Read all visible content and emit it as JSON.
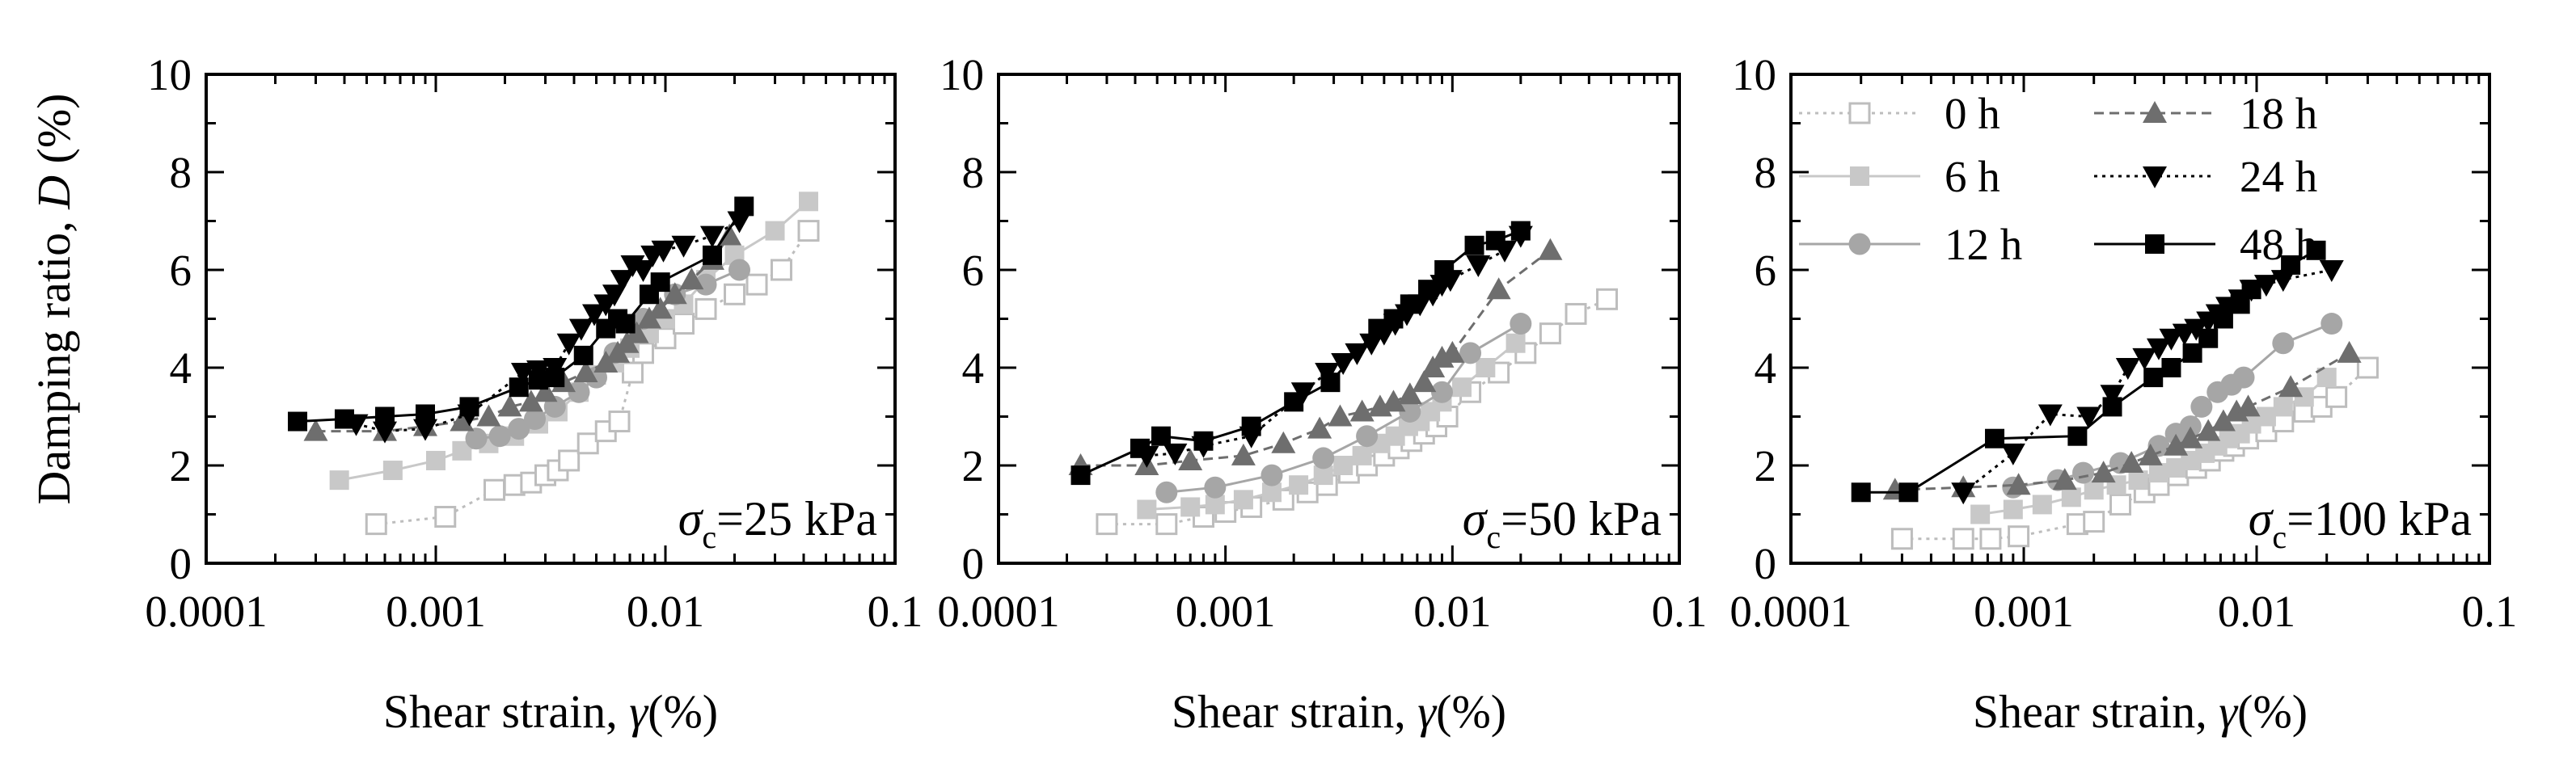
{
  "figure": {
    "y_axis_label_prefix": "Damping ratio, ",
    "y_axis_label_symbol": "D",
    "y_axis_label_suffix": " (%)",
    "x_axis_label_prefix": "Shear strain, ",
    "x_axis_label_symbol": "γ",
    "x_axis_label_suffix": "(%)"
  },
  "legend": [
    {
      "label": "0 h",
      "color": "#bdbdbd",
      "marker": "open-square",
      "line": "dotted"
    },
    {
      "label": "6 h",
      "color": "#c8c8c8",
      "marker": "filled-square",
      "line": "solid"
    },
    {
      "label": "12 h",
      "color": "#a6a6a6",
      "marker": "circle",
      "line": "solid"
    },
    {
      "label": "18 h",
      "color": "#6e6e6e",
      "marker": "triangle-up",
      "line": "dashed"
    },
    {
      "label": "24 h",
      "color": "#000000",
      "marker": "triangle-down",
      "line": "dotted"
    },
    {
      "label": "48 h",
      "color": "#000000",
      "marker": "filled-square",
      "line": "solid"
    }
  ],
  "chart_data": [
    {
      "type": "line",
      "x_scale": "log",
      "xlim": [
        0.0001,
        0.1
      ],
      "ylim": [
        0,
        10
      ],
      "x_tick_labels": [
        "0.0001",
        "0.001",
        "0.01",
        "0.1"
      ],
      "y_tick_labels": [
        "0",
        "2",
        "4",
        "6",
        "8",
        "10"
      ],
      "annotation": {
        "symbol": "σ",
        "subscript": "c",
        "text": "=25 kPa"
      },
      "series": [
        {
          "name": "0 h",
          "x": [
            0.00055,
            0.0011,
            0.0018,
            0.0022,
            0.0026,
            0.003,
            0.0034,
            0.0038,
            0.0046,
            0.0055,
            0.0063,
            0.0072,
            0.008,
            0.01,
            0.012,
            0.015,
            0.02,
            0.025,
            0.032,
            0.042
          ],
          "y": [
            0.8,
            0.95,
            1.5,
            1.6,
            1.65,
            1.8,
            1.9,
            2.1,
            2.45,
            2.7,
            2.9,
            3.9,
            4.3,
            4.6,
            4.9,
            5.2,
            5.5,
            5.7,
            6.0,
            6.8
          ]
        },
        {
          "name": "6 h",
          "x": [
            0.00038,
            0.00065,
            0.001,
            0.0013,
            0.0017,
            0.0022,
            0.0028,
            0.0034,
            0.0042,
            0.005,
            0.006,
            0.007,
            0.0085,
            0.01,
            0.012,
            0.015,
            0.02,
            0.03,
            0.042
          ],
          "y": [
            1.7,
            1.9,
            2.1,
            2.3,
            2.45,
            2.6,
            2.85,
            3.1,
            3.5,
            3.85,
            4.1,
            4.4,
            4.7,
            5.0,
            5.3,
            5.8,
            6.3,
            6.8,
            7.4
          ]
        },
        {
          "name": "12 h",
          "x": [
            0.0015,
            0.0019,
            0.0023,
            0.0027,
            0.0033,
            0.0042,
            0.005,
            0.006,
            0.008,
            0.011,
            0.015,
            0.021
          ],
          "y": [
            2.55,
            2.6,
            2.75,
            2.95,
            3.2,
            3.5,
            3.8,
            4.3,
            5.0,
            5.5,
            5.7,
            6.0
          ]
        },
        {
          "name": "18 h",
          "x": [
            0.0003,
            0.0006,
            0.0009,
            0.0013,
            0.0017,
            0.0021,
            0.0026,
            0.003,
            0.0036,
            0.0045,
            0.0055,
            0.0062,
            0.0068,
            0.0075,
            0.0085,
            0.0095,
            0.011,
            0.013,
            0.016,
            0.019
          ],
          "y": [
            2.7,
            2.7,
            2.8,
            2.9,
            3.0,
            3.2,
            3.3,
            3.5,
            3.7,
            3.9,
            4.1,
            4.3,
            4.5,
            4.7,
            5.0,
            5.2,
            5.5,
            5.8,
            6.2,
            6.7
          ]
        },
        {
          "name": "24 h",
          "x": [
            0.00045,
            0.0006,
            0.0009,
            0.0014,
            0.0024,
            0.0028,
            0.0033,
            0.0038,
            0.0043,
            0.0049,
            0.0055,
            0.006,
            0.0065,
            0.0072,
            0.008,
            0.0088,
            0.0098,
            0.012,
            0.016,
            0.021
          ],
          "y": [
            2.85,
            2.7,
            2.75,
            3.05,
            3.9,
            3.95,
            4.0,
            4.5,
            4.8,
            5.1,
            5.3,
            5.5,
            5.8,
            6.1,
            6.0,
            6.3,
            6.4,
            6.5,
            6.7,
            7.0
          ]
        },
        {
          "name": "48 h",
          "x": [
            0.00025,
            0.0004,
            0.0006,
            0.0009,
            0.0014,
            0.0023,
            0.0028,
            0.0033,
            0.0044,
            0.0055,
            0.0062,
            0.0067,
            0.0085,
            0.0095,
            0.016,
            0.022
          ],
          "y": [
            2.9,
            2.95,
            3.0,
            3.05,
            3.2,
            3.6,
            3.75,
            3.8,
            4.25,
            4.8,
            5.0,
            4.9,
            5.5,
            5.75,
            6.3,
            7.3
          ]
        }
      ]
    },
    {
      "type": "line",
      "x_scale": "log",
      "xlim": [
        0.0001,
        0.1
      ],
      "ylim": [
        0,
        10
      ],
      "x_tick_labels": [
        "0.0001",
        "0.001",
        "0.01",
        "0.1"
      ],
      "y_tick_labels": [
        "0",
        "2",
        "4",
        "6",
        "8",
        "10"
      ],
      "annotation": {
        "symbol": "σ",
        "subscript": "c",
        "text": "=50 kPa"
      },
      "series": [
        {
          "name": "0 h",
          "x": [
            0.0003,
            0.00055,
            0.0008,
            0.001,
            0.0013,
            0.0018,
            0.0023,
            0.0028,
            0.0035,
            0.0042,
            0.005,
            0.0058,
            0.0066,
            0.0075,
            0.0085,
            0.0095,
            0.012,
            0.016,
            0.021,
            0.027,
            0.035,
            0.048
          ],
          "y": [
            0.8,
            0.8,
            0.95,
            1.05,
            1.15,
            1.3,
            1.45,
            1.6,
            1.85,
            2.0,
            2.2,
            2.35,
            2.5,
            2.65,
            2.8,
            3.0,
            3.5,
            3.9,
            4.3,
            4.7,
            5.1,
            5.4
          ]
        },
        {
          "name": "6 h",
          "x": [
            0.00045,
            0.0007,
            0.0009,
            0.0012,
            0.0016,
            0.0021,
            0.0027,
            0.0033,
            0.004,
            0.0048,
            0.0056,
            0.0064,
            0.0072,
            0.008,
            0.009,
            0.011,
            0.014,
            0.019
          ],
          "y": [
            1.1,
            1.15,
            1.2,
            1.3,
            1.45,
            1.6,
            1.8,
            2.0,
            2.2,
            2.45,
            2.6,
            2.8,
            2.9,
            3.1,
            3.3,
            3.6,
            4.0,
            4.5
          ]
        },
        {
          "name": "12 h",
          "x": [
            0.00055,
            0.0009,
            0.0016,
            0.0027,
            0.0042,
            0.0065,
            0.009,
            0.012,
            0.02
          ],
          "y": [
            1.45,
            1.55,
            1.8,
            2.15,
            2.6,
            3.1,
            3.5,
            4.3,
            4.9
          ]
        },
        {
          "name": "18 h",
          "x": [
            0.00023,
            0.00045,
            0.0007,
            0.0012,
            0.0018,
            0.0026,
            0.0032,
            0.004,
            0.0048,
            0.0055,
            0.0065,
            0.0075,
            0.0082,
            0.009,
            0.01,
            0.016,
            0.027
          ],
          "y": [
            2.0,
            2.0,
            2.1,
            2.2,
            2.45,
            2.75,
            3.0,
            3.1,
            3.2,
            3.3,
            3.45,
            3.7,
            4.0,
            4.2,
            4.3,
            5.6,
            6.4
          ]
        },
        {
          "name": "24 h",
          "x": [
            0.00045,
            0.0006,
            0.0008,
            0.0013,
            0.0022,
            0.0028,
            0.0033,
            0.0038,
            0.0044,
            0.005,
            0.0056,
            0.0063,
            0.0072,
            0.0082,
            0.009,
            0.0098,
            0.013,
            0.017,
            0.02
          ],
          "y": [
            2.2,
            2.25,
            2.4,
            2.6,
            3.5,
            3.9,
            4.1,
            4.3,
            4.5,
            4.7,
            4.9,
            5.1,
            5.3,
            5.5,
            5.7,
            5.8,
            6.1,
            6.4,
            6.7
          ]
        },
        {
          "name": "48 h",
          "x": [
            0.00023,
            0.00042,
            0.00052,
            0.0008,
            0.0013,
            0.002,
            0.0029,
            0.0047,
            0.0055,
            0.0065,
            0.0078,
            0.0092,
            0.0125,
            0.0155,
            0.02
          ],
          "y": [
            1.8,
            2.35,
            2.6,
            2.5,
            2.8,
            3.3,
            3.7,
            4.8,
            5.0,
            5.3,
            5.6,
            6.0,
            6.5,
            6.6,
            6.8
          ]
        }
      ]
    },
    {
      "type": "line",
      "x_scale": "log",
      "xlim": [
        0.0001,
        0.1
      ],
      "ylim": [
        0,
        10
      ],
      "x_tick_labels": [
        "0.0001",
        "0.001",
        "0.01",
        "0.1"
      ],
      "y_tick_labels": [
        "0",
        "2",
        "4",
        "6",
        "8",
        "10"
      ],
      "annotation": {
        "symbol": "σ",
        "subscript": "c",
        "text": "=100 kPa"
      },
      "series": [
        {
          "name": "0 h",
          "x": [
            0.0003,
            0.00055,
            0.00072,
            0.00095,
            0.0017,
            0.002,
            0.0026,
            0.0033,
            0.0038,
            0.0046,
            0.0055,
            0.0063,
            0.0072,
            0.008,
            0.0092,
            0.011,
            0.013,
            0.016,
            0.019,
            0.022,
            0.03
          ],
          "y": [
            0.5,
            0.5,
            0.5,
            0.55,
            0.8,
            0.85,
            1.2,
            1.45,
            1.6,
            1.8,
            1.95,
            2.1,
            2.3,
            2.4,
            2.55,
            2.7,
            2.9,
            3.1,
            3.2,
            3.4,
            4.0
          ]
        },
        {
          "name": "6 h",
          "x": [
            0.00065,
            0.0009,
            0.0012,
            0.0016,
            0.002,
            0.0025,
            0.0031,
            0.0038,
            0.0045,
            0.0052,
            0.006,
            0.0068,
            0.0076,
            0.0085,
            0.0095,
            0.011,
            0.013,
            0.016,
            0.02
          ],
          "y": [
            1.0,
            1.1,
            1.2,
            1.35,
            1.5,
            1.6,
            1.7,
            1.85,
            1.95,
            2.1,
            2.25,
            2.4,
            2.55,
            2.65,
            2.85,
            3.0,
            3.2,
            3.4,
            3.8
          ]
        },
        {
          "name": "12 h",
          "x": [
            0.0009,
            0.0014,
            0.0018,
            0.0026,
            0.0038,
            0.0045,
            0.0052,
            0.0058,
            0.0068,
            0.0078,
            0.0088,
            0.013,
            0.021
          ],
          "y": [
            1.55,
            1.7,
            1.85,
            2.05,
            2.4,
            2.65,
            2.8,
            3.2,
            3.5,
            3.65,
            3.8,
            4.5,
            4.9
          ]
        },
        {
          "name": "18 h",
          "x": [
            0.00028,
            0.00055,
            0.00095,
            0.0015,
            0.0022,
            0.0029,
            0.0035,
            0.0045,
            0.0052,
            0.0062,
            0.0072,
            0.0082,
            0.0092,
            0.014,
            0.025
          ],
          "y": [
            1.5,
            1.55,
            1.6,
            1.7,
            1.85,
            2.05,
            2.2,
            2.4,
            2.55,
            2.7,
            2.9,
            3.1,
            3.2,
            3.6,
            4.3
          ]
        },
        {
          "name": "24 h",
          "x": [
            0.00055,
            0.0009,
            0.0013,
            0.0019,
            0.0024,
            0.0028,
            0.0033,
            0.0038,
            0.0043,
            0.0049,
            0.0055,
            0.0062,
            0.0068,
            0.0075,
            0.0085,
            0.0095,
            0.011,
            0.013,
            0.021
          ],
          "y": [
            1.45,
            2.25,
            3.05,
            3.0,
            3.45,
            4.0,
            4.2,
            4.4,
            4.6,
            4.7,
            4.8,
            4.95,
            5.1,
            5.25,
            5.4,
            5.6,
            5.7,
            5.8,
            6.0
          ]
        },
        {
          "name": "48 h",
          "x": [
            0.0002,
            0.00032,
            0.00075,
            0.0017,
            0.0024,
            0.0036,
            0.0043,
            0.0053,
            0.0062,
            0.0072,
            0.0085,
            0.0095,
            0.014,
            0.018
          ],
          "y": [
            1.45,
            1.45,
            2.55,
            2.6,
            3.2,
            3.8,
            4.0,
            4.3,
            4.6,
            5.0,
            5.3,
            5.6,
            6.1,
            6.4
          ]
        }
      ]
    }
  ]
}
